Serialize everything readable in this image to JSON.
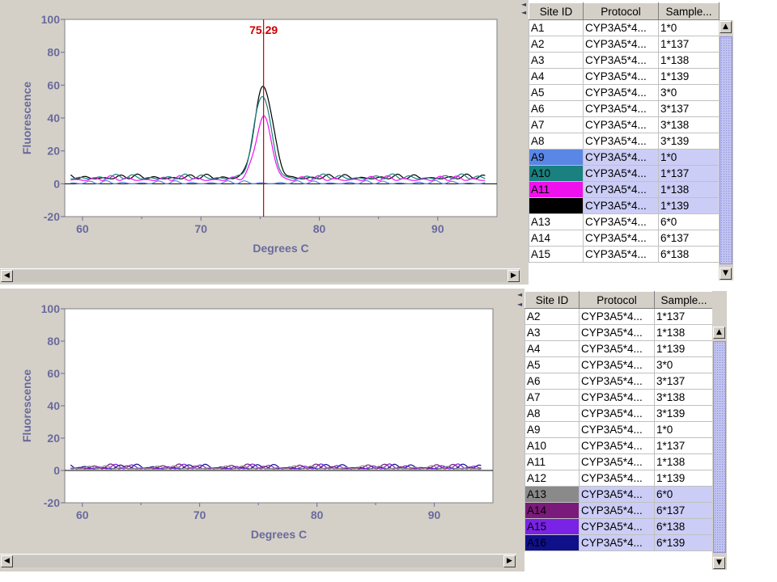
{
  "colors": {
    "panel_bg": "#d4d0c8",
    "plot_bg": "#ffffff",
    "axis_text": "#6a6a9c",
    "cursor_line": "#cc0000",
    "selection_bg": "#cccdf6"
  },
  "icons": {
    "scroll_left": "◀",
    "scroll_right": "▶",
    "scroll_up": "▲",
    "scroll_down": "▼",
    "split_handle": "◄"
  },
  "top": {
    "chart": {
      "cursor_label": "75.29",
      "xlabel": "Degrees C",
      "ylabel": "Fluorescence"
    },
    "table": {
      "headers": [
        "Site ID",
        "Protocol",
        "Sample..."
      ],
      "rows": [
        {
          "site": "A1",
          "protocol": "CYP3A5*4...",
          "sample": "1*0",
          "swatch": "",
          "selected": false
        },
        {
          "site": "A2",
          "protocol": "CYP3A5*4...",
          "sample": "1*137",
          "swatch": "",
          "selected": false
        },
        {
          "site": "A3",
          "protocol": "CYP3A5*4...",
          "sample": "1*138",
          "swatch": "",
          "selected": false
        },
        {
          "site": "A4",
          "protocol": "CYP3A5*4...",
          "sample": "1*139",
          "swatch": "",
          "selected": false
        },
        {
          "site": "A5",
          "protocol": "CYP3A5*4...",
          "sample": "3*0",
          "swatch": "",
          "selected": false
        },
        {
          "site": "A6",
          "protocol": "CYP3A5*4...",
          "sample": "3*137",
          "swatch": "",
          "selected": false
        },
        {
          "site": "A7",
          "protocol": "CYP3A5*4...",
          "sample": "3*138",
          "swatch": "",
          "selected": false
        },
        {
          "site": "A8",
          "protocol": "CYP3A5*4...",
          "sample": "3*139",
          "swatch": "",
          "selected": false
        },
        {
          "site": "A9",
          "protocol": "CYP3A5*4...",
          "sample": "1*0",
          "swatch": "#5a86e6",
          "selected": true
        },
        {
          "site": "A10",
          "protocol": "CYP3A5*4...",
          "sample": "1*137",
          "swatch": "#1a8080",
          "selected": true
        },
        {
          "site": "A11",
          "protocol": "CYP3A5*4...",
          "sample": "1*138",
          "swatch": "#ee11ee",
          "selected": true
        },
        {
          "site": "",
          "protocol": "CYP3A5*4...",
          "sample": "1*139",
          "swatch": "#000000",
          "selected": true
        },
        {
          "site": "A13",
          "protocol": "CYP3A5*4...",
          "sample": "6*0",
          "swatch": "",
          "selected": false
        },
        {
          "site": "A14",
          "protocol": "CYP3A5*4...",
          "sample": "6*137",
          "swatch": "",
          "selected": false
        },
        {
          "site": "A15",
          "protocol": "CYP3A5*4...",
          "sample": "6*138",
          "swatch": "",
          "selected": false
        }
      ]
    }
  },
  "bottom": {
    "chart": {
      "xlabel": "Degrees C",
      "ylabel": "Fluorescence"
    },
    "table": {
      "headers": [
        "Site ID",
        "Protocol",
        "Sample..."
      ],
      "rows": [
        {
          "site": "A2",
          "protocol": "CYP3A5*4...",
          "sample": "1*137",
          "swatch": "",
          "selected": false
        },
        {
          "site": "A3",
          "protocol": "CYP3A5*4...",
          "sample": "1*138",
          "swatch": "",
          "selected": false
        },
        {
          "site": "A4",
          "protocol": "CYP3A5*4...",
          "sample": "1*139",
          "swatch": "",
          "selected": false
        },
        {
          "site": "A5",
          "protocol": "CYP3A5*4...",
          "sample": "3*0",
          "swatch": "",
          "selected": false
        },
        {
          "site": "A6",
          "protocol": "CYP3A5*4...",
          "sample": "3*137",
          "swatch": "",
          "selected": false
        },
        {
          "site": "A7",
          "protocol": "CYP3A5*4...",
          "sample": "3*138",
          "swatch": "",
          "selected": false
        },
        {
          "site": "A8",
          "protocol": "CYP3A5*4...",
          "sample": "3*139",
          "swatch": "",
          "selected": false
        },
        {
          "site": "A9",
          "protocol": "CYP3A5*4...",
          "sample": "1*0",
          "swatch": "",
          "selected": false
        },
        {
          "site": "A10",
          "protocol": "CYP3A5*4...",
          "sample": "1*137",
          "swatch": "",
          "selected": false
        },
        {
          "site": "A11",
          "protocol": "CYP3A5*4...",
          "sample": "1*138",
          "swatch": "",
          "selected": false
        },
        {
          "site": "A12",
          "protocol": "CYP3A5*4...",
          "sample": "1*139",
          "swatch": "",
          "selected": false
        },
        {
          "site": "A13",
          "protocol": "CYP3A5*4...",
          "sample": "6*0",
          "swatch": "#8a8a8a",
          "selected": true
        },
        {
          "site": "A14",
          "protocol": "CYP3A5*4...",
          "sample": "6*137",
          "swatch": "#7a1a7a",
          "selected": true
        },
        {
          "site": "A15",
          "protocol": "CYP3A5*4...",
          "sample": "6*138",
          "swatch": "#7a22e6",
          "selected": true
        },
        {
          "site": "A16",
          "protocol": "CYP3A5*4...",
          "sample": "6*139",
          "swatch": "#10108a",
          "selected": true
        }
      ]
    }
  },
  "chart_data": [
    {
      "type": "line",
      "xlabel": "Degrees C",
      "ylabel": "Fluorescence",
      "xlim": [
        58.5,
        95
      ],
      "ylim": [
        -20,
        100
      ],
      "x_ticks": [
        60,
        70,
        80,
        90
      ],
      "y_ticks": [
        -20,
        0,
        20,
        40,
        60,
        80,
        100
      ],
      "cursor": {
        "x": 75.29,
        "label": "75.29"
      },
      "series": [
        {
          "color": "#000000",
          "baseline": 3,
          "noise": 3,
          "peak_x": 75.3,
          "peak_y": 55,
          "width": 0.75
        },
        {
          "color": "#1a8080",
          "baseline": 3,
          "noise": 3,
          "peak_x": 75.2,
          "peak_y": 50,
          "width": 0.7
        },
        {
          "color": "#ee11ee",
          "baseline": 2,
          "noise": 3,
          "peak_x": 75.3,
          "peak_y": 38,
          "width": 0.65
        },
        {
          "color": "#5a86e6",
          "baseline": 0,
          "noise": 2,
          "peak_x": 75.3,
          "peak_y": 0,
          "width": 0.7
        }
      ]
    },
    {
      "type": "line",
      "xlabel": "Degrees C",
      "ylabel": "Fluorescence",
      "xlim": [
        58.5,
        95
      ],
      "ylim": [
        -20,
        100
      ],
      "x_ticks": [
        60,
        70,
        80,
        90
      ],
      "y_ticks": [
        -20,
        0,
        20,
        40,
        60,
        80,
        100
      ],
      "series": [
        {
          "color": "#10108a",
          "baseline": 1,
          "noise": 3,
          "peak_x": 75,
          "peak_y": 0,
          "width": 1
        },
        {
          "color": "#7a22e6",
          "baseline": 1,
          "noise": 3,
          "peak_x": 75,
          "peak_y": 0,
          "width": 1
        },
        {
          "color": "#7a1a7a",
          "baseline": 1,
          "noise": 3,
          "peak_x": 75,
          "peak_y": 0,
          "width": 1
        },
        {
          "color": "#8a8a8a",
          "baseline": 1,
          "noise": 2,
          "peak_x": 75,
          "peak_y": 0,
          "width": 1
        }
      ]
    }
  ]
}
